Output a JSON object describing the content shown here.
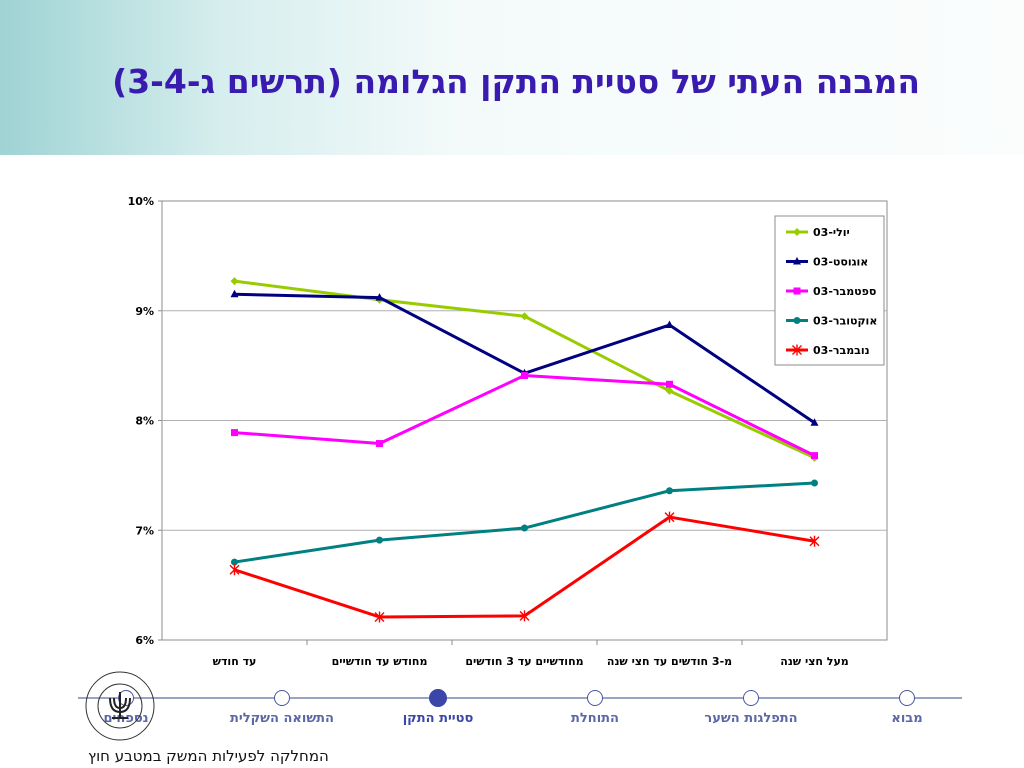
{
  "title": "המבנה העתי של סטיית התקן הגלומה (תרשים ג-3-4)",
  "chart_data": {
    "type": "line",
    "categories": [
      "עד חודש",
      "מחודש עד חודשיים",
      "מחודשיים עד 3 חודשים",
      "מ-3 חודשים עד חצי שנה",
      "מעל חצי שנה"
    ],
    "ylim": [
      6,
      10
    ],
    "yticks": [
      "6%",
      "7%",
      "8%",
      "9%",
      "10%"
    ],
    "ytick_values": [
      6,
      7,
      8,
      9,
      10
    ],
    "grid": true,
    "legend_position": "top-right",
    "series": [
      {
        "name": "יולי-03",
        "color": "#99cc00",
        "marker": "diamond",
        "values": [
          9.27,
          9.1,
          8.95,
          8.27,
          7.66
        ]
      },
      {
        "name": "אוגוסט-03",
        "color": "#000080",
        "marker": "triangle",
        "values": [
          9.15,
          9.12,
          8.43,
          8.87,
          7.98
        ]
      },
      {
        "name": "ספטמבר-03",
        "color": "#ff00ff",
        "marker": "square",
        "values": [
          7.89,
          7.79,
          8.41,
          8.33,
          7.68
        ]
      },
      {
        "name": "אוקטובר-03",
        "color": "#008080",
        "marker": "circle",
        "values": [
          6.71,
          6.91,
          7.02,
          7.36,
          7.43
        ]
      },
      {
        "name": "נובמבר-03",
        "color": "#ff0000",
        "marker": "star",
        "values": [
          6.64,
          6.21,
          6.22,
          7.12,
          6.9
        ]
      }
    ]
  },
  "nav": {
    "items": [
      {
        "label": "מבוא",
        "active": false
      },
      {
        "label": "התפלגות השער",
        "active": false
      },
      {
        "label": "התוחלת",
        "active": false
      },
      {
        "label": "סטיית התקן",
        "active": true
      },
      {
        "label": "התשואה השקלית",
        "active": false
      },
      {
        "label": "נספחים",
        "active": false
      }
    ]
  },
  "footer": "המחלקה לפעילות המשק במטבע חוץ",
  "logo": {
    "text_top": "בנק ישראל",
    "text_bottom": "BANK OF ISRAEL"
  }
}
